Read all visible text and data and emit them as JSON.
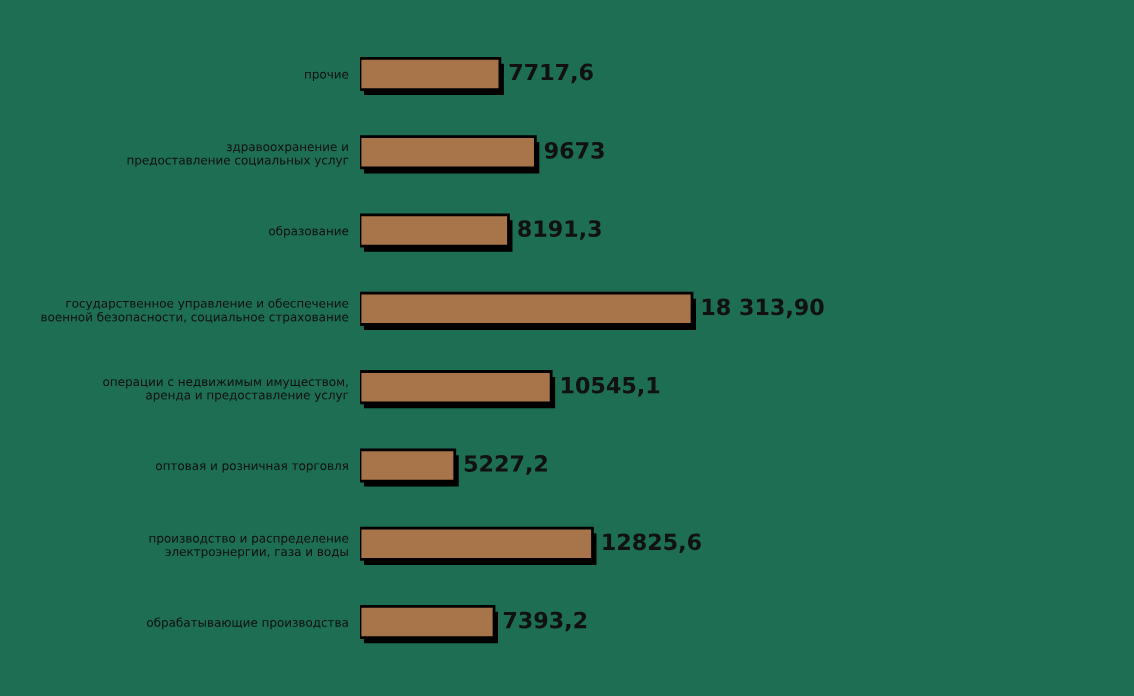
{
  "chart_data": {
    "type": "bar",
    "orientation": "horizontal",
    "tick_labels": "y",
    "categories": [
      "прочие",
      "здравоохранение и предоставление социальных услуг",
      "образование",
      "государственное управление и обеспечение военной безопасности, социальное страхование",
      "операции с недвижимым имуществом, аренда и предоставление услуг",
      "оптовая и розничная торговля",
      "производство и распределение электроэнергии, газа и воды",
      "обрабатывающие производства"
    ],
    "values": [
      7717.6,
      9673,
      8191.3,
      18313.9,
      10545.1,
      5227.2,
      12825.6,
      7393.2
    ],
    "value_labels": [
      "7717,6",
      "9673",
      "8191,3",
      "18 313,90",
      "10545,1",
      "5227,2",
      "12825,6",
      "7393,2"
    ],
    "color": "#a8744a",
    "grid": false,
    "legend": false
  }
}
